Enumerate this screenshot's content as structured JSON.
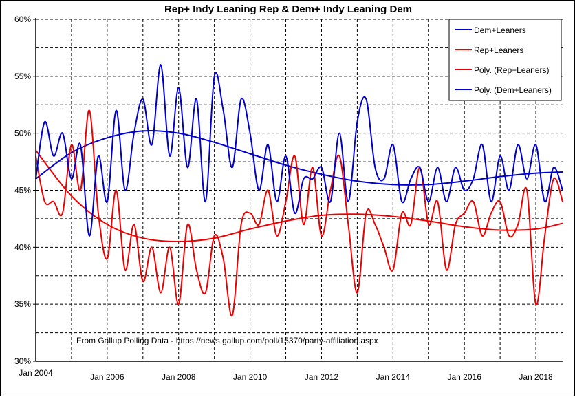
{
  "chart_data": {
    "type": "line",
    "title": "Rep+ Indy Leaning Rep & Dem+ Indy Leaning Dem",
    "annotation": "From Gallup Polling Data - https://news.gallup.com/poll/15370/party-affiliation.aspx",
    "xlabel": "",
    "ylabel": "",
    "xlim": [
      2004.0,
      2018.75
    ],
    "ylim": [
      30,
      60
    ],
    "y_ticks": [
      "30%",
      "35%",
      "40%",
      "45%",
      "50%",
      "55%",
      "60%"
    ],
    "y_tick_values": [
      30,
      35,
      40,
      45,
      50,
      55,
      60
    ],
    "x_ticks": [
      "Jan 2004",
      "Jan 2006",
      "Jan 2008",
      "Jan 2010",
      "Jan 2012",
      "Jan 2014",
      "Jan 2016",
      "Jan 2018"
    ],
    "x_tick_values": [
      2004,
      2006,
      2008,
      2010,
      2012,
      2014,
      2016,
      2018
    ],
    "grid": true,
    "legend_position": "top-right",
    "x": [
      2004.0,
      2004.25,
      2004.5,
      2004.75,
      2005.0,
      2005.25,
      2005.5,
      2005.75,
      2006.0,
      2006.25,
      2006.5,
      2006.75,
      2007.0,
      2007.25,
      2007.5,
      2007.75,
      2008.0,
      2008.25,
      2008.5,
      2008.75,
      2009.0,
      2009.25,
      2009.5,
      2009.75,
      2010.0,
      2010.25,
      2010.5,
      2010.75,
      2011.0,
      2011.25,
      2011.5,
      2011.75,
      2012.0,
      2012.25,
      2012.5,
      2012.75,
      2013.0,
      2013.25,
      2013.5,
      2013.75,
      2014.0,
      2014.25,
      2014.5,
      2014.75,
      2015.0,
      2015.25,
      2015.5,
      2015.75,
      2016.0,
      2016.25,
      2016.5,
      2016.75,
      2017.0,
      2017.25,
      2017.5,
      2017.75,
      2018.0,
      2018.25,
      2018.5,
      2018.75
    ],
    "series": [
      {
        "name": "Dem+Leaners",
        "color": "#0000cc",
        "kind": "data",
        "values": [
          46,
          51,
          48,
          50,
          46,
          49,
          41,
          48,
          44,
          52,
          45,
          50,
          53,
          49,
          56,
          48,
          54,
          47,
          53,
          44,
          55,
          52,
          47,
          53,
          50,
          45,
          49,
          44,
          48,
          43,
          46,
          46,
          47,
          44,
          50,
          44,
          51,
          53,
          47,
          46,
          49,
          44,
          46,
          47,
          44,
          47,
          44,
          47,
          45,
          46,
          49,
          44,
          48,
          45,
          49,
          46,
          49,
          44,
          47,
          45
        ]
      },
      {
        "name": "Rep+Leaners",
        "color": "#ee0000",
        "kind": "data",
        "values": [
          48,
          44,
          44,
          43,
          49,
          45,
          52,
          43,
          39,
          45,
          38,
          42,
          37,
          40,
          36,
          40,
          35,
          42,
          38,
          36,
          41,
          39,
          34,
          42,
          43,
          42,
          45,
          41,
          44,
          48,
          42,
          47,
          41,
          45,
          48,
          42,
          36,
          43,
          42,
          40,
          38,
          43,
          42,
          47,
          42,
          44,
          38,
          42,
          43,
          44,
          41,
          43,
          44,
          41,
          42,
          45,
          35,
          41,
          46,
          44
        ]
      },
      {
        "name": "Poly. (Rep+Leaners)",
        "color": "#ee0000",
        "kind": "trend",
        "x": [
          2004,
          2005,
          2006,
          2007,
          2008,
          2009,
          2010,
          2011,
          2012,
          2013,
          2014,
          2015,
          2016,
          2017,
          2018,
          2018.75
        ],
        "values": [
          48.5,
          44.5,
          42.0,
          40.8,
          40.5,
          40.8,
          41.6,
          42.3,
          42.8,
          42.9,
          42.7,
          42.3,
          41.8,
          41.5,
          41.6,
          42.1
        ]
      },
      {
        "name": "Poly. (Dem+Leaners)",
        "color": "#0000cc",
        "kind": "trend",
        "x": [
          2004,
          2005,
          2006,
          2007,
          2008,
          2009,
          2010,
          2011,
          2012,
          2013,
          2014,
          2015,
          2016,
          2017,
          2018,
          2018.75
        ],
        "values": [
          46.0,
          48.3,
          49.6,
          50.2,
          50.0,
          49.2,
          48.2,
          47.2,
          46.4,
          45.8,
          45.5,
          45.5,
          45.8,
          46.2,
          46.5,
          46.6
        ]
      }
    ]
  }
}
